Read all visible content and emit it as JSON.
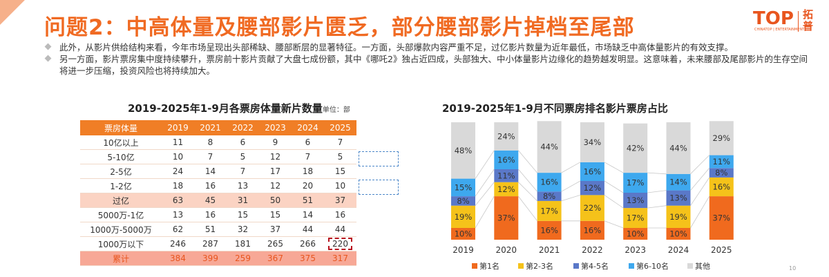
{
  "title": "问题2：中高体量及腰部影片匮乏，部分腰部影片掉档至尾部",
  "logo": {
    "main": "TOP",
    "cn1": "拓",
    "cn2": "普",
    "sub": "CHINATOP | ENTERTAINMENT"
  },
  "bullets": [
    "此外，从影片供给结构来看，今年市场呈现出头部稀缺、腰部断层的显著特征。一方面，头部爆款内容严重不足，过亿影片数量为近年最低，市场缺乏中高体量影片的有效支撑。",
    "另一方面，影片票房集中度持续攀升，票房前十影片贡献了大盘七成份额，其中《哪吒2》独占近四成，头部独大、中小体量影片边缘化的趋势越发明显。这意味着，未来腰部及尾部影片的生存空间将进一步压缩，投资风险也将持续加大。"
  ],
  "table": {
    "title": "2019-2025年1-9月各票房体量新片数量",
    "unit": "单位：部",
    "headers": [
      "票房体量",
      "2019",
      "2021",
      "2022",
      "2023",
      "2024",
      "2025"
    ],
    "rows": [
      [
        "10亿以上",
        "11",
        "8",
        "6",
        "9",
        "6",
        "7"
      ],
      [
        "5-10亿",
        "10",
        "7",
        "5",
        "12",
        "7",
        "5"
      ],
      [
        "2-5亿",
        "24",
        "14",
        "7",
        "17",
        "18",
        "15"
      ],
      [
        "1-2亿",
        "18",
        "16",
        "13",
        "12",
        "20",
        "10"
      ],
      [
        "过亿",
        "63",
        "45",
        "31",
        "50",
        "51",
        "37"
      ],
      [
        "5000万-1亿",
        "13",
        "16",
        "15",
        "15",
        "14",
        "16"
      ],
      [
        "1000万-5000万",
        "62",
        "51",
        "32",
        "37",
        "44",
        "44"
      ],
      [
        "1000万以下",
        "246",
        "287",
        "181",
        "265",
        "266",
        "220"
      ],
      [
        "累计",
        "384",
        "399",
        "259",
        "367",
        "375",
        "317"
      ]
    ]
  },
  "chart_data": {
    "type": "bar",
    "stacked": true,
    "percent": true,
    "title": "2019-2025年1-9月不同票房排名影片票房占比",
    "categories": [
      "2019",
      "2020",
      "2021",
      "2022",
      "2023",
      "2024",
      "2025"
    ],
    "series": [
      {
        "name": "第1名",
        "color": "#f06a1e",
        "values": [
          10,
          37,
          16,
          16,
          10,
          10,
          37
        ]
      },
      {
        "name": "第2-3名",
        "color": "#f5c21a",
        "values": [
          19,
          12,
          17,
          22,
          17,
          19,
          16
        ]
      },
      {
        "name": "第4-5名",
        "color": "#5a78c8",
        "values": [
          8,
          11,
          8,
          12,
          13,
          13,
          8
        ]
      },
      {
        "name": "第6-10名",
        "color": "#3ea8ee",
        "values": [
          15,
          16,
          16,
          16,
          17,
          14,
          11
        ]
      },
      {
        "name": "其他",
        "color": "#d9d9d9",
        "values": [
          48,
          24,
          44,
          34,
          42,
          44,
          29
        ]
      }
    ],
    "ylim": [
      0,
      100
    ],
    "legend": "bottom",
    "grid": false
  },
  "page_number": "10"
}
